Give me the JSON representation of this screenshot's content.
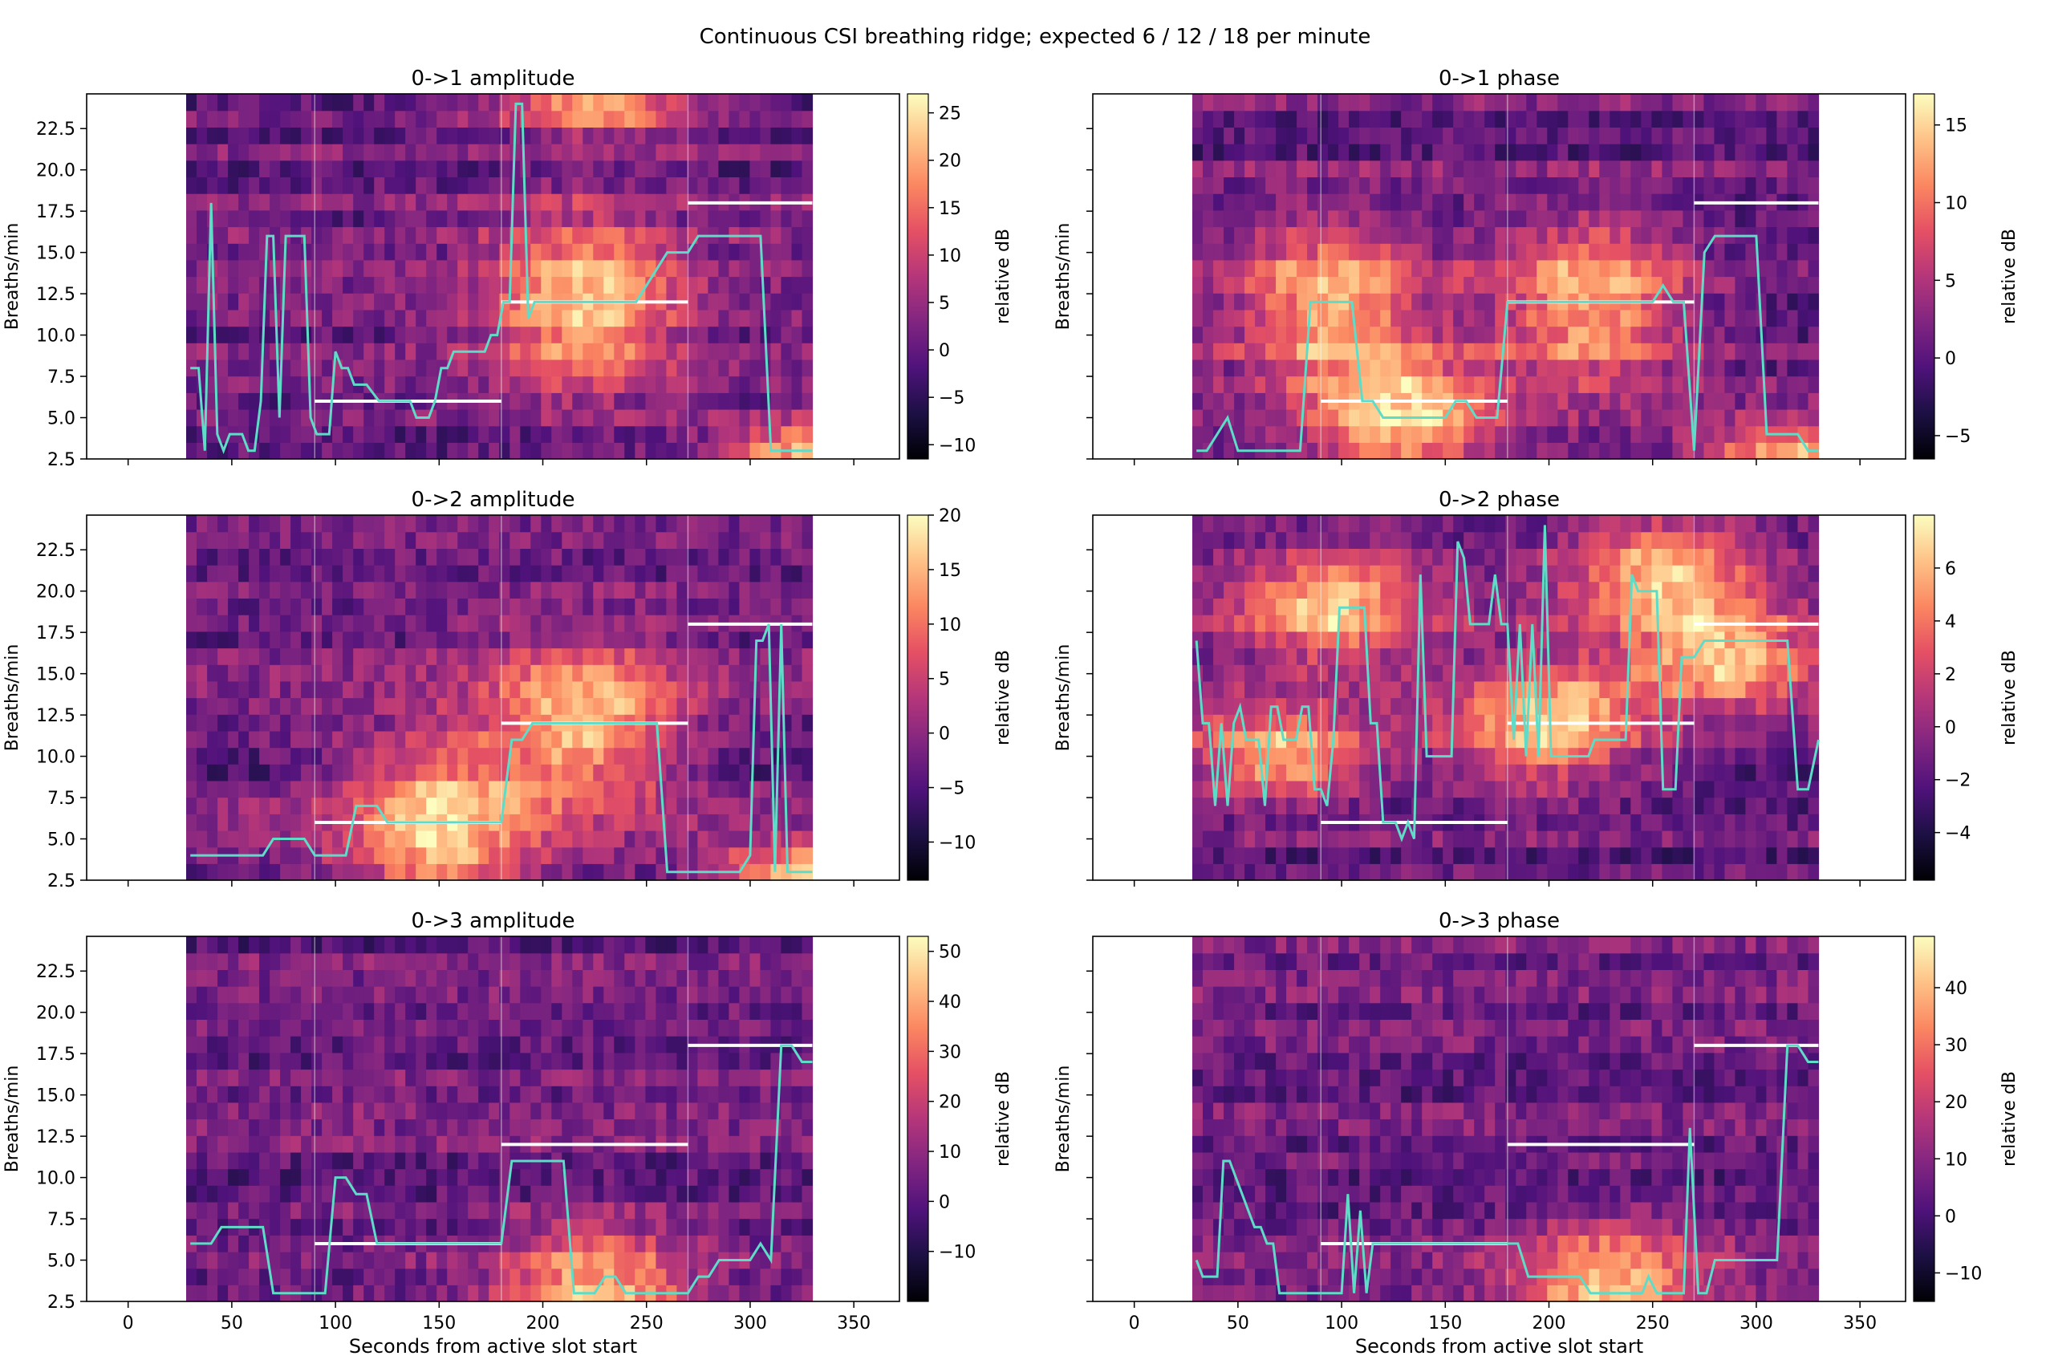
{
  "figure": {
    "suptitle": "Continuous CSI breathing ridge; expected 6 / 12 / 18 per minute"
  },
  "shared_axes": {
    "xlabel": "Seconds from active slot start",
    "ylabel": "Breaths/min",
    "xlim": [
      -20,
      372
    ],
    "ylim": [
      2.5,
      24.6
    ],
    "xticks": [
      0,
      50,
      100,
      150,
      200,
      250,
      300,
      350
    ],
    "xtick_labels": [
      "0",
      "50",
      "100",
      "150",
      "200",
      "250",
      "300",
      "350"
    ],
    "yticks": [
      2.5,
      5.0,
      7.5,
      10.0,
      12.5,
      15.0,
      17.5,
      20.0,
      22.5
    ],
    "ytick_labels": [
      "2.5",
      "5.0",
      "7.5",
      "10.0",
      "12.5",
      "15.0",
      "17.5",
      "20.0",
      "22.5"
    ],
    "slot_boundaries_s": [
      90,
      180,
      270
    ],
    "colormap": "magma",
    "ridge_color": "#5fdcc8",
    "expected_color": "#ffffff"
  },
  "colorbar_label": "relative dB",
  "chart_data": [
    {
      "type": "heatmap",
      "title": "0->1 amplitude",
      "heatmap_x_range": [
        28,
        330
      ],
      "color_range": [
        -11.5,
        27
      ],
      "colorbar_ticks": [
        -10,
        -5,
        0,
        5,
        10,
        15,
        20,
        25
      ],
      "colorbar_tick_labels": [
        "−10",
        "−5",
        "0",
        "5",
        "10",
        "15",
        "20",
        "25"
      ],
      "hotspots": [
        [
          220,
          12,
          9
        ],
        [
          225,
          24,
          2
        ],
        [
          330,
          3,
          2
        ]
      ],
      "expected": [
        {
          "x": [
            90,
            180
          ],
          "y": 6
        },
        {
          "x": [
            180,
            270
          ],
          "y": 12
        },
        {
          "x": [
            270,
            330
          ],
          "y": 18
        }
      ],
      "ridge": {
        "x": [
          30,
          34,
          37,
          40,
          43,
          46,
          49,
          52,
          55,
          58,
          61,
          64,
          67,
          70,
          73,
          76,
          79,
          82,
          85,
          88,
          91,
          94,
          97,
          100,
          103,
          106,
          109,
          112,
          115,
          118,
          121,
          124,
          127,
          130,
          133,
          136,
          139,
          142,
          145,
          148,
          151,
          154,
          157,
          160,
          163,
          166,
          169,
          172,
          175,
          178,
          181,
          184,
          187,
          190,
          193,
          196,
          200,
          205,
          210,
          215,
          220,
          225,
          230,
          235,
          240,
          245,
          250,
          255,
          260,
          265,
          270,
          275,
          280,
          285,
          290,
          295,
          300,
          305,
          310,
          315,
          320,
          325,
          330
        ],
        "y": [
          8,
          8,
          3,
          18,
          4,
          3,
          4,
          4,
          4,
          3,
          3,
          6,
          16,
          16,
          5,
          16,
          16,
          16,
          16,
          5,
          4,
          4,
          4,
          9,
          8,
          8,
          7,
          7,
          7,
          6.5,
          6,
          6,
          6,
          6,
          6,
          6,
          5,
          5,
          5,
          6,
          8,
          8,
          9,
          9,
          9,
          9,
          9,
          9,
          10,
          10,
          12,
          12,
          24,
          24,
          11,
          12,
          12,
          12,
          12,
          12,
          12,
          12,
          12,
          12,
          12,
          12,
          13,
          14,
          15,
          15,
          15,
          16,
          16,
          16,
          16,
          16,
          16,
          16,
          3,
          3,
          3,
          3,
          3
        ]
      }
    },
    {
      "type": "heatmap",
      "title": "0->1 phase",
      "heatmap_x_range": [
        28,
        330
      ],
      "color_range": [
        -6.5,
        17
      ],
      "colorbar_ticks": [
        -5,
        0,
        5,
        10,
        15
      ],
      "colorbar_tick_labels": [
        "−5",
        "0",
        "5",
        "10",
        "15"
      ],
      "hotspots": [
        [
          95,
          12,
          8
        ],
        [
          130,
          5,
          6
        ],
        [
          220,
          12,
          8
        ],
        [
          320,
          3,
          2
        ]
      ],
      "expected": [
        {
          "x": [
            90,
            180
          ],
          "y": 6
        },
        {
          "x": [
            180,
            270
          ],
          "y": 12
        },
        {
          "x": [
            270,
            330
          ],
          "y": 18
        }
      ],
      "ridge": {
        "x": [
          30,
          35,
          40,
          45,
          50,
          55,
          60,
          65,
          70,
          75,
          80,
          85,
          90,
          95,
          100,
          105,
          110,
          115,
          120,
          125,
          130,
          135,
          140,
          145,
          150,
          155,
          160,
          165,
          170,
          175,
          180,
          185,
          190,
          195,
          200,
          205,
          210,
          215,
          220,
          225,
          230,
          235,
          240,
          245,
          250,
          255,
          260,
          265,
          270,
          275,
          280,
          285,
          290,
          295,
          300,
          305,
          310,
          315,
          320,
          325,
          330
        ],
        "y": [
          3,
          3,
          4,
          5,
          3,
          3,
          3,
          3,
          3,
          3,
          3,
          12,
          12,
          12,
          12,
          12,
          6,
          6,
          5,
          5,
          5,
          5,
          5,
          5,
          5,
          6,
          6,
          5,
          5,
          5,
          12,
          12,
          12,
          12,
          12,
          12,
          12,
          12,
          12,
          12,
          12,
          12,
          12,
          12,
          12,
          13,
          12,
          12,
          3,
          15,
          16,
          16,
          16,
          16,
          16,
          4,
          4,
          4,
          4,
          3,
          3
        ]
      }
    },
    {
      "type": "heatmap",
      "title": "0->2 amplitude",
      "heatmap_x_range": [
        28,
        330
      ],
      "color_range": [
        -13.5,
        20
      ],
      "colorbar_ticks": [
        -10,
        -5,
        0,
        5,
        10,
        15,
        20
      ],
      "colorbar_tick_labels": [
        "−10",
        "−5",
        "0",
        "5",
        "10",
        "15",
        "20"
      ],
      "hotspots": [
        [
          150,
          6,
          9
        ],
        [
          220,
          12,
          8
        ],
        [
          330,
          3,
          2
        ]
      ],
      "expected": [
        {
          "x": [
            90,
            180
          ],
          "y": 6
        },
        {
          "x": [
            180,
            270
          ],
          "y": 12
        },
        {
          "x": [
            270,
            330
          ],
          "y": 18
        }
      ],
      "ridge": {
        "x": [
          30,
          40,
          50,
          60,
          65,
          70,
          75,
          80,
          85,
          90,
          95,
          100,
          105,
          110,
          115,
          120,
          125,
          130,
          135,
          140,
          145,
          150,
          155,
          160,
          165,
          170,
          175,
          180,
          185,
          190,
          195,
          200,
          205,
          210,
          215,
          220,
          225,
          230,
          235,
          240,
          245,
          250,
          255,
          260,
          265,
          270,
          275,
          280,
          285,
          290,
          295,
          300,
          303,
          306,
          309,
          312,
          315,
          318,
          321,
          324,
          327,
          330
        ],
        "y": [
          4,
          4,
          4,
          4,
          4,
          5,
          5,
          5,
          5,
          4,
          4,
          4,
          4,
          7,
          7,
          7,
          6,
          6,
          6,
          6,
          6,
          6,
          6,
          6,
          6,
          6,
          6,
          6,
          11,
          11,
          12,
          12,
          12,
          12,
          12,
          12,
          12,
          12,
          12,
          12,
          12,
          12,
          12,
          3,
          3,
          3,
          3,
          3,
          3,
          3,
          3,
          4,
          17,
          17,
          18,
          3,
          18,
          3,
          3,
          3,
          3,
          3
        ]
      }
    },
    {
      "type": "heatmap",
      "title": "0->2 phase",
      "heatmap_x_range": [
        28,
        330
      ],
      "color_range": [
        -5.8,
        8
      ],
      "colorbar_ticks": [
        -4,
        -2,
        0,
        2,
        4,
        6
      ],
      "colorbar_tick_labels": [
        "−4",
        "−2",
        "0",
        "2",
        "4",
        "6"
      ],
      "hotspots": [
        [
          95,
          19,
          5
        ],
        [
          200,
          12,
          6
        ],
        [
          255,
          21,
          5
        ],
        [
          285,
          16,
          4
        ],
        [
          70,
          10,
          4
        ]
      ],
      "expected": [
        {
          "x": [
            90,
            180
          ],
          "y": 6
        },
        {
          "x": [
            180,
            270
          ],
          "y": 12
        },
        {
          "x": [
            270,
            330
          ],
          "y": 18
        }
      ],
      "ridge": {
        "x": [
          30,
          33,
          36,
          39,
          42,
          45,
          48,
          51,
          54,
          57,
          60,
          63,
          66,
          69,
          72,
          75,
          78,
          81,
          84,
          87,
          90,
          93,
          96,
          99,
          102,
          105,
          108,
          111,
          114,
          117,
          120,
          123,
          126,
          129,
          132,
          135,
          138,
          141,
          144,
          147,
          150,
          153,
          156,
          159,
          162,
          165,
          168,
          171,
          174,
          177,
          180,
          183,
          186,
          189,
          192,
          195,
          198,
          201,
          204,
          207,
          210,
          213,
          216,
          219,
          222,
          225,
          228,
          231,
          234,
          237,
          240,
          243,
          246,
          249,
          252,
          255,
          258,
          261,
          264,
          267,
          270,
          275,
          280,
          285,
          290,
          295,
          300,
          305,
          310,
          315,
          320,
          325,
          330
        ],
        "y": [
          17,
          12,
          12,
          7,
          12,
          7,
          12,
          13,
          11,
          11,
          11,
          7,
          13,
          13,
          11,
          11,
          11,
          13,
          13,
          8,
          8,
          7,
          11,
          19,
          19,
          19,
          19,
          19,
          12,
          12,
          6,
          6,
          6,
          5,
          6,
          5,
          21,
          10,
          10,
          10,
          10,
          10,
          23,
          22,
          18,
          18,
          18,
          18,
          21,
          18,
          18,
          11,
          18,
          10,
          18,
          10,
          24,
          10,
          10,
          10,
          10,
          10,
          10,
          10,
          11,
          11,
          11,
          11,
          11,
          11,
          21,
          20,
          20,
          20,
          20,
          8,
          8,
          8,
          16,
          16,
          16,
          17,
          17,
          17,
          17,
          17,
          17,
          17,
          17,
          17,
          8,
          8,
          11
        ]
      }
    },
    {
      "type": "heatmap",
      "title": "0->3 amplitude",
      "heatmap_x_range": [
        28,
        330
      ],
      "color_range": [
        -20,
        53
      ],
      "colorbar_ticks": [
        -10,
        0,
        10,
        20,
        30,
        40,
        50
      ],
      "colorbar_tick_labels": [
        "−10",
        "0",
        "10",
        "20",
        "30",
        "40",
        "50"
      ],
      "hotspots": [
        [
          225,
          3,
          6
        ]
      ],
      "expected": [
        {
          "x": [
            90,
            180
          ],
          "y": 6
        },
        {
          "x": [
            180,
            270
          ],
          "y": 12
        },
        {
          "x": [
            270,
            330
          ],
          "y": 18
        }
      ],
      "ridge": {
        "x": [
          30,
          40,
          45,
          50,
          55,
          60,
          65,
          70,
          75,
          80,
          85,
          90,
          95,
          100,
          105,
          110,
          115,
          120,
          125,
          130,
          135,
          140,
          145,
          150,
          155,
          160,
          165,
          170,
          175,
          180,
          185,
          190,
          195,
          200,
          205,
          210,
          215,
          220,
          225,
          230,
          235,
          240,
          245,
          250,
          255,
          260,
          265,
          270,
          275,
          280,
          285,
          290,
          295,
          300,
          305,
          310,
          315,
          320,
          325,
          330
        ],
        "y": [
          6,
          6,
          7,
          7,
          7,
          7,
          7,
          3,
          3,
          3,
          3,
          3,
          3,
          10,
          10,
          9,
          9,
          6,
          6,
          6,
          6,
          6,
          6,
          6,
          6,
          6,
          6,
          6,
          6,
          6,
          11,
          11,
          11,
          11,
          11,
          11,
          3,
          3,
          3,
          4,
          4,
          3,
          3,
          3,
          3,
          3,
          3,
          3,
          4,
          4,
          5,
          5,
          5,
          5,
          6,
          5,
          18,
          18,
          17,
          17
        ]
      }
    },
    {
      "type": "heatmap",
      "title": "0->3 phase",
      "heatmap_x_range": [
        28,
        330
      ],
      "color_range": [
        -15,
        49
      ],
      "colorbar_ticks": [
        -10,
        0,
        10,
        20,
        30,
        40
      ],
      "colorbar_tick_labels": [
        "−10",
        "0",
        "10",
        "20",
        "30",
        "40"
      ],
      "hotspots": [
        [
          228,
          3,
          6
        ]
      ],
      "expected": [
        {
          "x": [
            90,
            180
          ],
          "y": 6
        },
        {
          "x": [
            180,
            270
          ],
          "y": 12
        },
        {
          "x": [
            270,
            330
          ],
          "y": 18
        }
      ],
      "ridge": {
        "x": [
          30,
          33,
          36,
          40,
          43,
          46,
          49,
          52,
          55,
          58,
          61,
          64,
          67,
          70,
          75,
          80,
          85,
          90,
          95,
          100,
          103,
          106,
          109,
          112,
          115,
          120,
          130,
          140,
          150,
          160,
          170,
          180,
          185,
          190,
          195,
          200,
          205,
          210,
          215,
          220,
          225,
          230,
          235,
          240,
          245,
          248,
          252,
          256,
          260,
          265,
          268,
          272,
          276,
          280,
          285,
          290,
          295,
          300,
          305,
          310,
          315,
          320,
          325,
          330
        ],
        "y": [
          5,
          4,
          4,
          4,
          11,
          11,
          10,
          9,
          8,
          7,
          7,
          6,
          6,
          3,
          3,
          3,
          3,
          3,
          3,
          3,
          9,
          3,
          8,
          3,
          6,
          6,
          6,
          6,
          6,
          6,
          6,
          6,
          6,
          4,
          4,
          4,
          4,
          4,
          4,
          3,
          3,
          3,
          3,
          3,
          3,
          4,
          3,
          3,
          3,
          3,
          13,
          3,
          3,
          5,
          5,
          5,
          5,
          5,
          5,
          5,
          18,
          18,
          17,
          17
        ]
      }
    }
  ]
}
